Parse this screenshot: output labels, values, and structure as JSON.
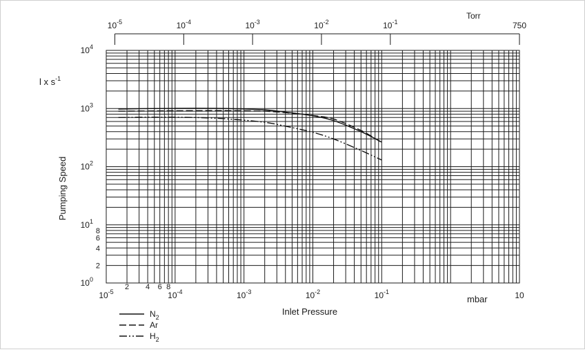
{
  "chart_data": {
    "type": "line",
    "x_scale": "log",
    "y_scale": "log",
    "xlim": [
      1e-05,
      10
    ],
    "ylim": [
      1,
      10000
    ],
    "grid": true,
    "legend_position": "bottom-left",
    "xlabel": "Inlet Pressure",
    "xunit": "mbar",
    "ylabel": "Pumping Speed",
    "yunit": "l x s-1",
    "top_axis_unit": "Torr",
    "x_ticks": [
      {
        "value": 1e-05,
        "label": "10-5",
        "base": "10",
        "exp": "-5"
      },
      {
        "value": 2e-05,
        "label": "2"
      },
      {
        "value": 4e-05,
        "label": "4"
      },
      {
        "value": 6e-05,
        "label": "6"
      },
      {
        "value": 8e-05,
        "label": "8"
      },
      {
        "value": 0.0001,
        "label": "10-4",
        "base": "10",
        "exp": "-4"
      },
      {
        "value": 0.001,
        "label": "10-3",
        "base": "10",
        "exp": "-3"
      },
      {
        "value": 0.01,
        "label": "10-2",
        "base": "10",
        "exp": "-2"
      },
      {
        "value": 0.1,
        "label": "10-1",
        "base": "10",
        "exp": "-1"
      },
      {
        "value": 10,
        "label": "10"
      }
    ],
    "top_ticks": [
      {
        "torr": 1e-05,
        "label": "10-5",
        "base": "10",
        "exp": "-5"
      },
      {
        "torr": 0.0001,
        "label": "10-4",
        "base": "10",
        "exp": "-4"
      },
      {
        "torr": 0.001,
        "label": "10-3",
        "base": "10",
        "exp": "-3"
      },
      {
        "torr": 0.01,
        "label": "10-2",
        "base": "10",
        "exp": "-2"
      },
      {
        "torr": 0.1,
        "label": "10-1",
        "base": "10",
        "exp": "-1"
      },
      {
        "torr": 750,
        "label": "750"
      }
    ],
    "y_ticks": [
      {
        "value": 1,
        "label": "10^0",
        "base": "10",
        "exp": "0"
      },
      {
        "value": 2,
        "label": "2"
      },
      {
        "value": 4,
        "label": "4"
      },
      {
        "value": 6,
        "label": "6"
      },
      {
        "value": 8,
        "label": "8"
      },
      {
        "value": 10,
        "label": "10^1",
        "base": "10",
        "exp": "1"
      },
      {
        "value": 100,
        "label": "10^2",
        "base": "10",
        "exp": "2"
      },
      {
        "value": 1000,
        "label": "10^3",
        "base": "10",
        "exp": "3"
      },
      {
        "value": 10000,
        "label": "10^4",
        "base": "10",
        "exp": "4"
      }
    ],
    "series": [
      {
        "name": "N2",
        "name_base": "N",
        "name_sub": "2",
        "dash": "solid",
        "x": [
          1.5e-05,
          5e-05,
          0.0002,
          0.0006,
          0.002,
          0.005,
          0.01,
          0.02,
          0.05,
          0.1
        ],
        "y": [
          980,
          1000,
          1010,
          1000,
          950,
          840,
          750,
          620,
          400,
          265
        ]
      },
      {
        "name": "Ar",
        "name_base": "Ar",
        "name_sub": "",
        "dash": "dashed",
        "x": [
          1.5e-05,
          5e-05,
          0.0002,
          0.0006,
          0.002,
          0.005,
          0.01,
          0.02,
          0.05,
          0.1
        ],
        "y": [
          900,
          910,
          920,
          920,
          900,
          830,
          760,
          660,
          420,
          260
        ]
      },
      {
        "name": "H2",
        "name_base": "H",
        "name_sub": "2",
        "dash": "dash-dot-dot",
        "x": [
          1.5e-05,
          5e-05,
          0.0002,
          0.0006,
          0.002,
          0.005,
          0.01,
          0.02,
          0.05,
          0.1
        ],
        "y": [
          700,
          710,
          700,
          660,
          580,
          470,
          390,
          300,
          190,
          130
        ]
      }
    ]
  }
}
